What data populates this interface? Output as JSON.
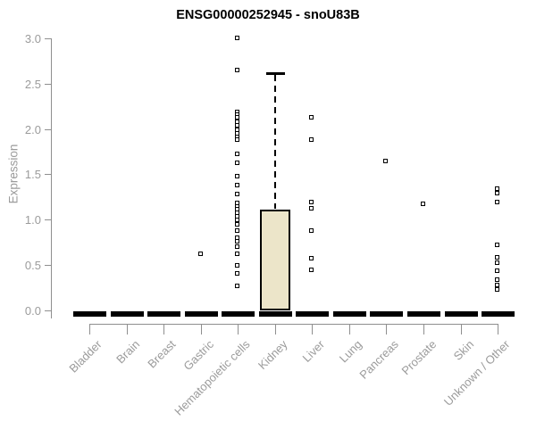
{
  "chart_data": {
    "type": "boxplot",
    "title": "ENSG00000252945 - snoU83B",
    "ylabel": "Expression",
    "xlabel": "",
    "ylim": [
      0.0,
      3.0
    ],
    "ytick_labels": [
      "0.0",
      "0.5",
      "1.0",
      "1.5",
      "2.0",
      "2.5",
      "3.0"
    ],
    "grid": false,
    "legend": "none",
    "categories": [
      "Bladder",
      "Brain",
      "Breast",
      "Gastric",
      "Hematopoietic cells",
      "Kidney",
      "Liver",
      "Lung",
      "Pancreas",
      "Prostate",
      "Skin",
      "Unknown / Other"
    ],
    "series": [
      {
        "category": "Bladder",
        "q1": 0,
        "median": 0,
        "q3": 0,
        "whisker_low": 0,
        "whisker_high": 0,
        "outliers": []
      },
      {
        "category": "Brain",
        "q1": 0,
        "median": 0,
        "q3": 0,
        "whisker_low": 0,
        "whisker_high": 0,
        "outliers": []
      },
      {
        "category": "Breast",
        "q1": 0,
        "median": 0,
        "q3": 0,
        "whisker_low": 0,
        "whisker_high": 0,
        "outliers": []
      },
      {
        "category": "Gastric",
        "q1": 0,
        "median": 0,
        "q3": 0,
        "whisker_low": 0,
        "whisker_high": 0,
        "outliers": [
          0.62
        ]
      },
      {
        "category": "Hematopoietic cells",
        "q1": 0,
        "median": 0,
        "q3": 0,
        "whisker_low": 0,
        "whisker_high": 0,
        "outliers": [
          3.0,
          2.65,
          2.18,
          2.15,
          2.12,
          2.08,
          2.04,
          1.99,
          1.95,
          1.91,
          1.88,
          1.72,
          1.62,
          1.48,
          1.38,
          1.28,
          1.18,
          1.14,
          1.11,
          1.07,
          1.03,
          0.99,
          0.94,
          0.88,
          0.8,
          0.76,
          0.7,
          0.62,
          0.49,
          0.4,
          0.27
        ]
      },
      {
        "category": "Kidney",
        "q1": 0,
        "median": 0,
        "q3": 1.11,
        "whisker_low": 0,
        "whisker_high": 2.62,
        "outliers": []
      },
      {
        "category": "Liver",
        "q1": 0,
        "median": 0,
        "q3": 0,
        "whisker_low": 0,
        "whisker_high": 0,
        "outliers": [
          2.12,
          1.88,
          1.19,
          1.12,
          0.88,
          0.57,
          0.44
        ]
      },
      {
        "category": "Lung",
        "q1": 0,
        "median": 0,
        "q3": 0,
        "whisker_low": 0,
        "whisker_high": 0,
        "outliers": []
      },
      {
        "category": "Pancreas",
        "q1": 0,
        "median": 0,
        "q3": 0,
        "whisker_low": 0,
        "whisker_high": 0,
        "outliers": [
          1.64
        ]
      },
      {
        "category": "Prostate",
        "q1": 0,
        "median": 0,
        "q3": 0,
        "whisker_low": 0,
        "whisker_high": 0,
        "outliers": [
          1.17
        ]
      },
      {
        "category": "Skin",
        "q1": 0,
        "median": 0,
        "q3": 0,
        "whisker_low": 0,
        "whisker_high": 0,
        "outliers": []
      },
      {
        "category": "Unknown / Other",
        "q1": 0,
        "median": 0,
        "q3": 0,
        "whisker_low": 0,
        "whisker_high": 0,
        "outliers": [
          1.34,
          1.29,
          1.19,
          0.72,
          0.58,
          0.52,
          0.43,
          0.33,
          0.28,
          0.23
        ]
      }
    ],
    "colors": {
      "box_fill": "#ece5c9",
      "box_border": "#000000",
      "median": "#000000",
      "whisker": "#000000",
      "outlier_marker": "#000000",
      "axis": "#8f8f8f",
      "tick_label": "#9b9b9b",
      "title": "#000000",
      "background": "#ffffff"
    }
  }
}
